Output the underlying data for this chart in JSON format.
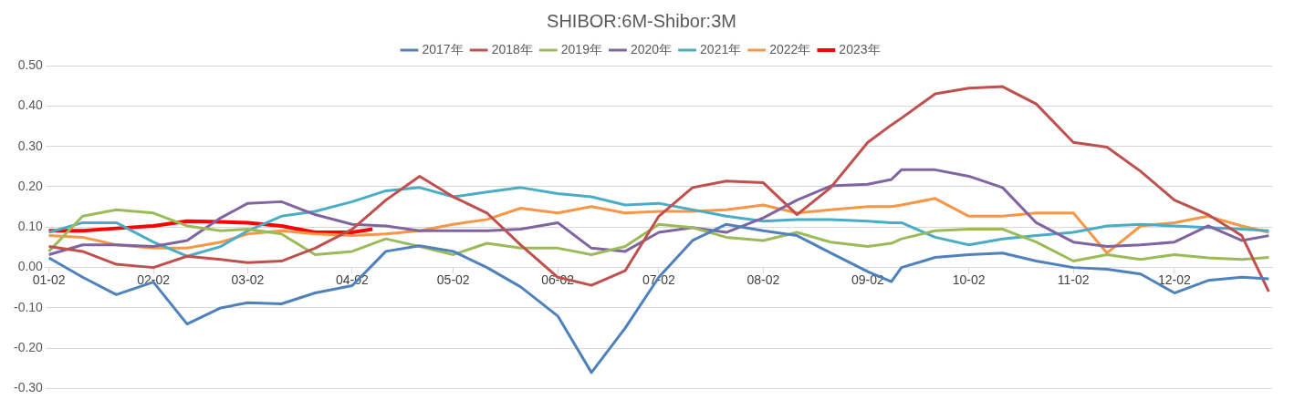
{
  "chart_data": {
    "type": "line",
    "title": "SHIBOR:6M-Shibor:3M",
    "x": [
      "--01-02",
      "--01-12",
      "--01-22",
      "--02-02",
      "--02-12",
      "--02-22",
      "--03-02",
      "--03-12",
      "--03-22",
      "--04-02",
      "--04-12",
      "--04-22",
      "--05-02",
      "--05-12",
      "--05-22",
      "--06-02",
      "--06-12",
      "--06-22",
      "--07-02",
      "--07-12",
      "--07-22",
      "--08-02",
      "--08-12",
      "--08-22",
      "--09-02",
      "--09-09",
      "--09-12",
      "--09-22",
      "--10-02",
      "--10-12",
      "--10-22",
      "--11-02",
      "--11-12",
      "--11-22",
      "--12-02",
      "--12-12",
      "--12-22",
      "--12-30"
    ],
    "series": [
      {
        "name": "2017年",
        "color": "#4f81bd",
        "values": [
          0.024,
          -0.024,
          -0.067,
          -0.036,
          -0.14,
          -0.1,
          -0.087,
          -0.09,
          -0.063,
          -0.045,
          0.04,
          0.054,
          0.04,
          0,
          -0.048,
          -0.12,
          -0.26,
          -0.15,
          -0.024,
          0.067,
          0.107,
          0.091,
          0.079,
          0.036,
          -0.01,
          -0.035,
          0,
          0.025,
          0.032,
          0.036,
          0.016,
          0,
          -0.004,
          -0.016,
          -0.063,
          -0.032,
          -0.024,
          -0.028
        ]
      },
      {
        "name": "2018年",
        "color": "#c0504d",
        "values": [
          0.052,
          0.04,
          0.008,
          0,
          0.028,
          0.02,
          0.012,
          0.016,
          0.048,
          0.095,
          0.167,
          0.226,
          0.175,
          0.135,
          0.056,
          -0.024,
          -0.044,
          -0.008,
          0.127,
          0.198,
          0.214,
          0.21,
          0.131,
          0.198,
          0.31,
          0.353,
          0.37,
          0.43,
          0.444,
          0.448,
          0.405,
          0.31,
          0.298,
          0.238,
          0.167,
          0.131,
          0.079,
          -0.06
        ]
      },
      {
        "name": "2019年",
        "color": "#9bbb59",
        "values": [
          0.04,
          0.127,
          0.143,
          0.135,
          0.103,
          0.091,
          0.095,
          0.083,
          0.032,
          0.04,
          0.071,
          0.052,
          0.032,
          0.06,
          0.048,
          0.048,
          0.032,
          0.052,
          0.107,
          0.099,
          0.075,
          0.067,
          0.087,
          0.063,
          0.052,
          0.06,
          0.071,
          0.091,
          0.095,
          0.095,
          0.063,
          0.016,
          0.032,
          0.02,
          0.032,
          0.024,
          0.02,
          0.025
        ]
      },
      {
        "name": "2020年",
        "color": "#8064a2",
        "values": [
          0.032,
          0.056,
          0.056,
          0.052,
          0.067,
          0.123,
          0.159,
          0.163,
          0.131,
          0.107,
          0.103,
          0.091,
          0.091,
          0.091,
          0.095,
          0.111,
          0.048,
          0.04,
          0.087,
          0.099,
          0.087,
          0.123,
          0.167,
          0.202,
          0.206,
          0.218,
          0.242,
          0.242,
          0.226,
          0.198,
          0.111,
          0.063,
          0.052,
          0.056,
          0.063,
          0.103,
          0.067,
          0.079
        ]
      },
      {
        "name": "2021年",
        "color": "#4bacc6",
        "values": [
          0.087,
          0.111,
          0.111,
          0.063,
          0.028,
          0.052,
          0.091,
          0.127,
          0.139,
          0.163,
          0.19,
          0.198,
          0.175,
          0.187,
          0.198,
          0.183,
          0.175,
          0.155,
          0.159,
          0.143,
          0.127,
          0.115,
          0.119,
          0.119,
          0.115,
          0.111,
          0.111,
          0.075,
          0.056,
          0.071,
          0.079,
          0.087,
          0.103,
          0.107,
          0.103,
          0.099,
          0.095,
          0.091
        ]
      },
      {
        "name": "2022年",
        "color": "#f79646",
        "values": [
          0.079,
          0.075,
          0.056,
          0.048,
          0.048,
          0.063,
          0.083,
          0.091,
          0.083,
          0.079,
          0.083,
          0.091,
          0.107,
          0.119,
          0.147,
          0.135,
          0.151,
          0.135,
          0.139,
          0.139,
          0.143,
          0.155,
          0.135,
          0.143,
          0.151,
          0.151,
          0.155,
          0.171,
          0.127,
          0.127,
          0.135,
          0.135,
          0.036,
          0.103,
          0.111,
          0.127,
          0.103,
          0.087
        ]
      },
      {
        "name": "2023年",
        "color": "#ff0000",
        "x": [
          "--01-02",
          "--01-12",
          "--01-22",
          "--02-02",
          "--02-12",
          "--02-22",
          "--03-02",
          "--03-12",
          "--03-22",
          "--04-02",
          "--04-08"
        ],
        "values": [
          0.091,
          0.091,
          0.097,
          0.103,
          0.115,
          0.113,
          0.111,
          0.103,
          0.087,
          0.087,
          0.095
        ]
      }
    ],
    "xlim": [
      "--01-01",
      "--12-31"
    ],
    "xticks": [
      {
        "value": "--01-02",
        "label": "01-02"
      },
      {
        "value": "--02-02",
        "label": "02-02"
      },
      {
        "value": "--03-02",
        "label": "03-02"
      },
      {
        "value": "--04-02",
        "label": "04-02"
      },
      {
        "value": "--05-02",
        "label": "05-02"
      },
      {
        "value": "--06-02",
        "label": "06-02"
      },
      {
        "value": "--07-02",
        "label": "07-02"
      },
      {
        "value": "--08-02",
        "label": "08-02"
      },
      {
        "value": "--09-02",
        "label": "09-02"
      },
      {
        "value": "--10-02",
        "label": "10-02"
      },
      {
        "value": "--11-02",
        "label": "11-02"
      },
      {
        "value": "--12-02",
        "label": "12-02"
      }
    ],
    "ylim": [
      -0.3,
      0.5
    ],
    "yticks": [
      {
        "value": -0.3,
        "label": "-0.30"
      },
      {
        "value": -0.2,
        "label": "-0.20"
      },
      {
        "value": -0.1,
        "label": "-0.10"
      },
      {
        "value": 0,
        "label": "0.00"
      },
      {
        "value": 0.1,
        "label": "0.10"
      },
      {
        "value": 0.2,
        "label": "0.20"
      },
      {
        "value": 0.3,
        "label": "0.30"
      },
      {
        "value": 0.4,
        "label": "0.40"
      },
      {
        "value": 0.5,
        "label": "0.50"
      }
    ],
    "grid": "y",
    "legend": "top",
    "marker": "none",
    "line_style": "solid"
  }
}
